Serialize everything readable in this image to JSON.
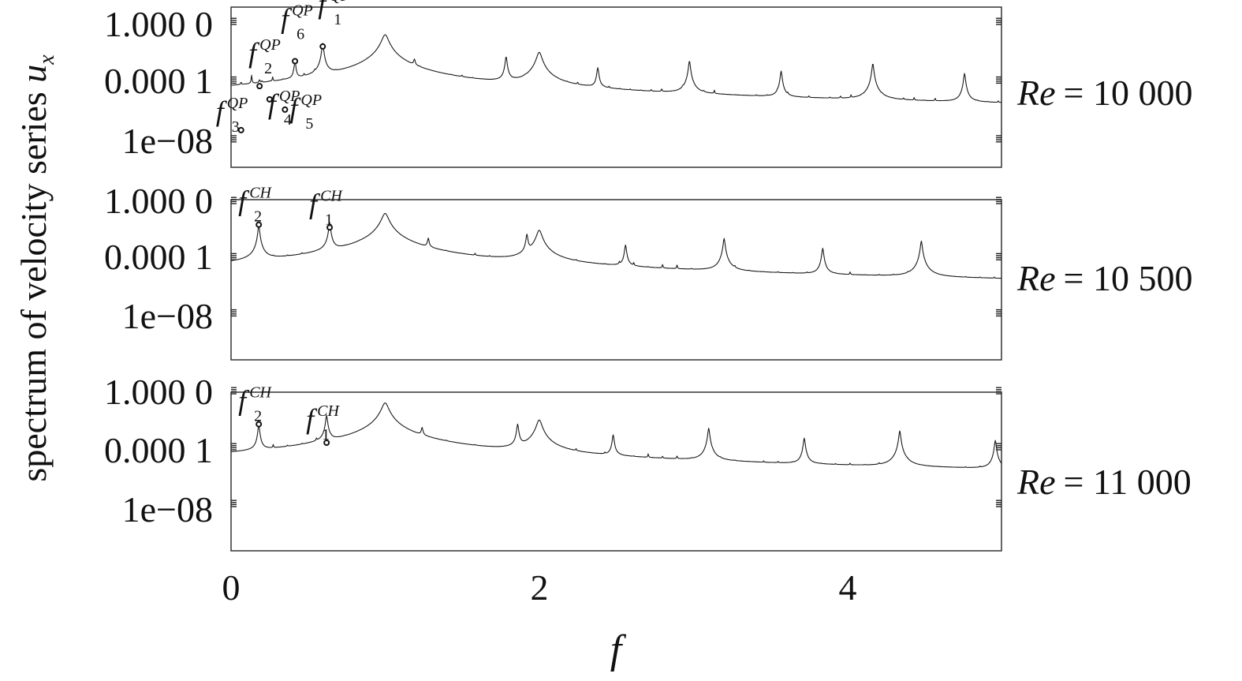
{
  "figure": {
    "ylabel_text": "spectrum of velocity series ",
    "ylabel_var": "u",
    "ylabel_sub": "x",
    "xlabel": "f"
  },
  "chart_data": {
    "type": "line",
    "xlim": [
      0,
      5
    ],
    "x_ticks": [
      "0",
      "2",
      "4"
    ],
    "y_scale": "log",
    "y_tick_labels": [
      "1.000 0",
      "0.000 1",
      "1e−08"
    ],
    "grid": false,
    "panels": [
      {
        "re_label": "Re",
        "re_value": "= 10 000",
        "fundamental_frequency": 0.595,
        "peaks": [
          {
            "name": "f",
            "sup": "QP",
            "sub": "3",
            "x": 0.065,
            "y_log10": -7.2
          },
          {
            "name": "f",
            "sup": "QP",
            "sub": "2",
            "x": 0.185,
            "y_log10": -4.2
          },
          {
            "name": "f",
            "sup": "QP",
            "sub": "4",
            "x": 0.25,
            "y_log10": -5.1
          },
          {
            "name": "f",
            "sup": "QP",
            "sub": "5",
            "x": 0.35,
            "y_log10": -5.8
          },
          {
            "name": "f",
            "sup": "QP",
            "sub": "6",
            "x": 0.415,
            "y_log10": -2.5
          },
          {
            "name": "f",
            "sup": "QP",
            "sub": "1",
            "x": 0.595,
            "y_log10": -1.5
          }
        ]
      },
      {
        "re_label": "Re",
        "re_value": "= 10 500",
        "fundamental_frequency": 0.64,
        "peaks": [
          {
            "name": "f",
            "sup": "CH",
            "sub": "2",
            "x": 0.18,
            "y_log10": -1.5
          },
          {
            "name": "f",
            "sup": "CH",
            "sub": "1",
            "x": 0.64,
            "y_log10": -1.7
          }
        ]
      },
      {
        "re_label": "Re",
        "re_value": "= 11 000",
        "fundamental_frequency": 0.62,
        "peaks": [
          {
            "name": "f",
            "sup": "CH",
            "sub": "2",
            "x": 0.18,
            "y_log10": -2.2
          },
          {
            "name": "f",
            "sup": "CH",
            "sub": "1",
            "x": 0.62,
            "y_log10": -3.5
          }
        ]
      }
    ]
  }
}
